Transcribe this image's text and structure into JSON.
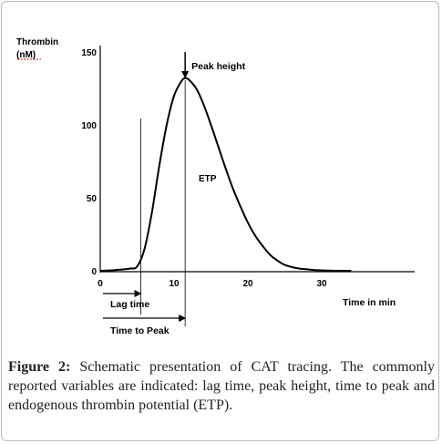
{
  "chart_data": {
    "type": "line",
    "ylabel_line1": "Thrombin",
    "ylabel_line2": "(nM)",
    "xlabel": "Time in min",
    "x_ticks": [
      0,
      10,
      20,
      30
    ],
    "y_ticks": [
      0,
      50,
      100,
      150
    ],
    "xlim": [
      0,
      38
    ],
    "ylim": [
      0,
      150
    ],
    "grid": false,
    "series": [
      {
        "x": [
          0,
          2,
          4,
          5,
          6,
          7,
          8,
          9,
          10,
          11,
          11.5,
          12,
          13,
          14,
          15,
          16,
          17,
          18,
          19,
          20,
          21,
          22,
          23,
          24,
          25,
          26,
          27,
          28,
          29,
          30,
          31,
          32,
          33,
          34
        ],
        "y": [
          0,
          0.5,
          1.5,
          3,
          15,
          40,
          72,
          100,
          120,
          130,
          132,
          131,
          125,
          114,
          100,
          85,
          70,
          56,
          44,
          33,
          24,
          17,
          11,
          7,
          4,
          2.5,
          1.5,
          1,
          0.5,
          0.3,
          0.1,
          0,
          0,
          0
        ]
      }
    ],
    "annotations": {
      "peak_height": "Peak height",
      "etp": "ETP",
      "lag_time": "Lag time",
      "time_to_peak": "Time to Peak"
    },
    "lag_time_x": 5.5,
    "peak_x": 11.5
  },
  "caption": {
    "label": "Figure 2:",
    "text": " Schematic presentation of CAT tracing. The commonly reported variables are indicated: lag time, peak height, time to peak and endogenous thrombin potential (ETP)."
  }
}
